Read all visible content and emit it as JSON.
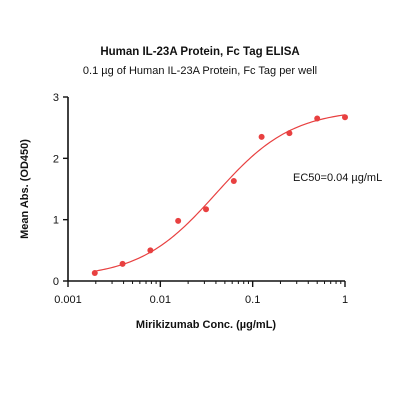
{
  "chart_data": {
    "type": "scatter",
    "title": "Human IL-23A Protein, Fc Tag ELISA",
    "subtitle": "0.1 µg of Human IL-23A Protein, Fc Tag per well",
    "xlabel": "Mirikizumab Conc. (µg/mL)",
    "ylabel": "Mean Abs. (OD450)",
    "x_scale": "log",
    "xlim": [
      0.001,
      1
    ],
    "ylim": [
      0,
      3
    ],
    "x_ticks": [
      0.001,
      0.01,
      0.1,
      1
    ],
    "x_tick_labels": [
      "0.001",
      "0.01",
      "0.1",
      "1"
    ],
    "y_ticks": [
      0,
      1,
      2,
      3
    ],
    "y_tick_labels": [
      "0",
      "1",
      "2",
      "3"
    ],
    "grid": false,
    "color": "#e84040",
    "points": {
      "x": [
        0.00195,
        0.0039,
        0.0078,
        0.0156,
        0.03125,
        0.0625,
        0.125,
        0.25,
        0.5,
        1.0
      ],
      "y": [
        0.13,
        0.28,
        0.5,
        0.98,
        1.17,
        1.63,
        2.35,
        2.41,
        2.65,
        2.67
      ]
    },
    "fit_curve": {
      "bottom": 0.05,
      "top": 2.8,
      "ec50": 0.04,
      "hill": 1.05
    },
    "annotation": "EC50=0.04 µg/mL"
  }
}
